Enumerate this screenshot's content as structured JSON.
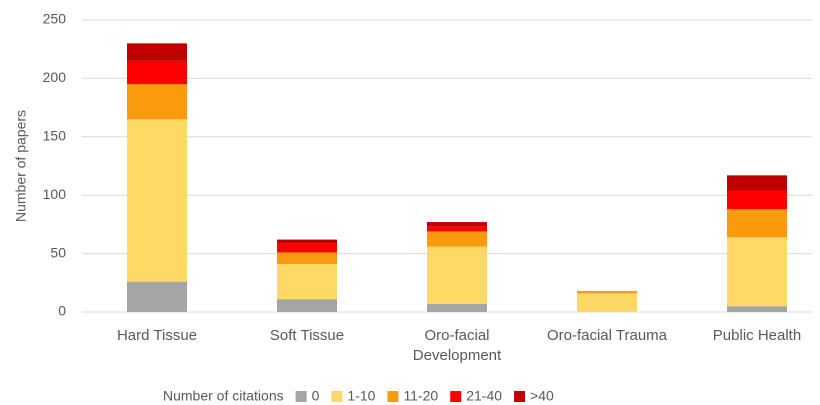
{
  "chart_data": {
    "type": "stacked_bar",
    "ylabel": "Number of papers",
    "legend_title": "Number of citations",
    "categories": [
      "Hard Tissue",
      "Soft Tissue",
      "Oro-facial Development",
      "Oro-facial Trauma",
      "Public Health"
    ],
    "series": [
      {
        "name": "0",
        "color": "#a5a5a5",
        "values": [
          26,
          11,
          7,
          0,
          5
        ]
      },
      {
        "name": "1-10",
        "color": "#ffd966",
        "values": [
          139,
          30,
          49,
          16,
          59
        ]
      },
      {
        "name": "11-20",
        "color": "#f99b0c",
        "values": [
          30,
          10,
          13,
          2,
          24
        ]
      },
      {
        "name": "21-40",
        "color": "#ff0000",
        "values": [
          20,
          8,
          4,
          0,
          16
        ]
      },
      {
        "name": ">40",
        "color": "#c00000",
        "values": [
          15,
          3,
          4,
          0,
          13
        ]
      }
    ],
    "ylim": [
      0,
      250
    ],
    "yticks": [
      0,
      50,
      100,
      150,
      200,
      250
    ],
    "grid": true,
    "legend": "bottom"
  }
}
